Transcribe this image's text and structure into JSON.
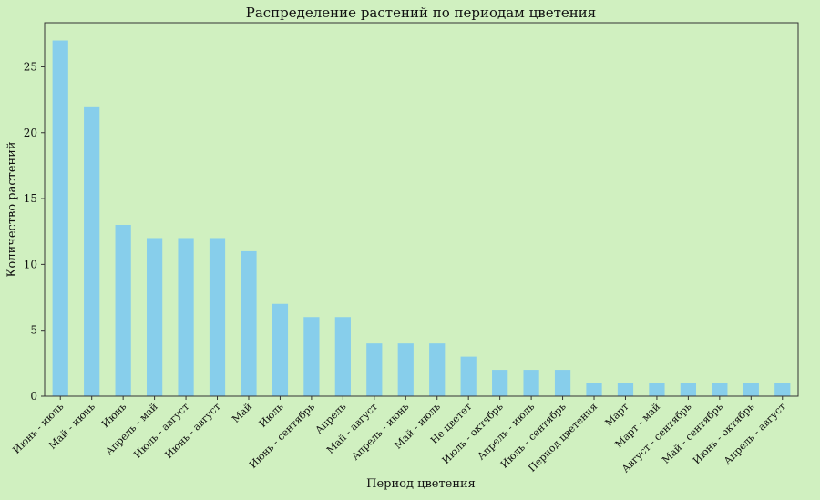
{
  "chart_data": {
    "type": "bar",
    "title": "Распределение растений по периодам цветения",
    "xlabel": "Период цветения",
    "ylabel": "Количество растений",
    "categories": [
      "Июнь - июль",
      "Май - июнь",
      "Июнь",
      "Апрель - май",
      "Июль - август",
      "Июнь - август",
      "Май",
      "Июль",
      "Июнь - сентябрь",
      "Апрель",
      "Май - август",
      "Апрель - июнь",
      "Май - июль",
      "Не цветет",
      "Июль - октябрь",
      "Апрель - июль",
      "Июль - сентябрь",
      "Период цветения",
      "Март",
      "Март - май",
      "Август - сентябрь",
      "Май - сентябрь",
      "Июнь - октябрь",
      "Апрель - август"
    ],
    "values": [
      27,
      22,
      13,
      12,
      12,
      12,
      11,
      7,
      6,
      6,
      4,
      4,
      4,
      3,
      2,
      2,
      2,
      1,
      1,
      1,
      1,
      1,
      1,
      1
    ],
    "ylim": [
      0,
      28.35
    ],
    "yticks": [
      0,
      5,
      10,
      15,
      20,
      25
    ],
    "grid": false,
    "colors": {
      "bar": "#87ceeb",
      "background": "#d0f0c0"
    }
  }
}
